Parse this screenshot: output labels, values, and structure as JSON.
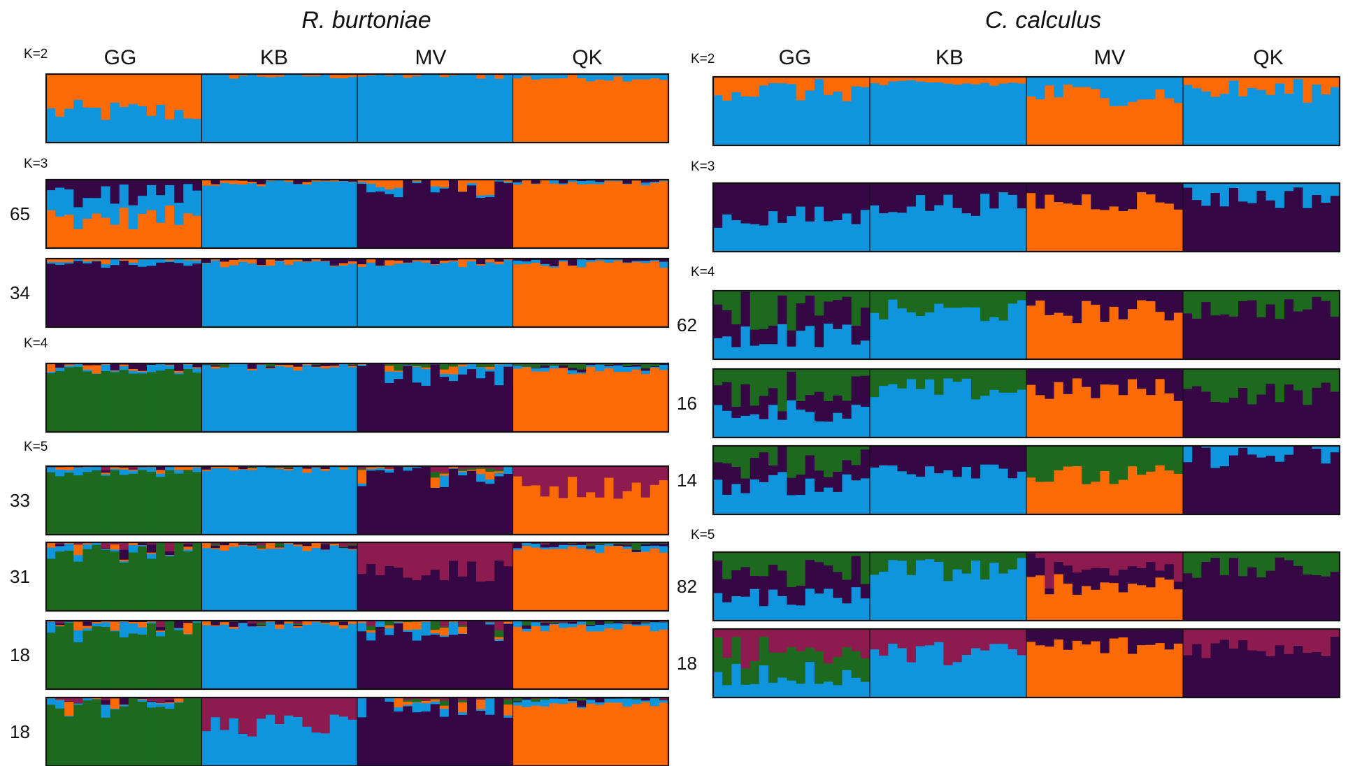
{
  "colors": {
    "blue": "#0e95dd",
    "orange": "#fb6a04",
    "purple": "#360745",
    "green": "#1d6a1e",
    "maroon": "#8e1b4f"
  },
  "chart_data": {
    "type": "bar",
    "description_kind": "STRUCTURE admixture plots (ancestry proportions per individual, stacked bars)",
    "panels": [
      {
        "title": "R. burtoniae",
        "populations": [
          "GG",
          "KB",
          "MV",
          "QK"
        ],
        "individuals_per_population": 17,
        "rows": [
          {
            "k_label": "K=2",
            "run_label": "",
            "K": 2,
            "dominant": {
              "GG": [
                "blue",
                0.45,
                "orange"
              ],
              "KB": [
                "blue",
                0.98
              ],
              "MV": [
                "blue",
                0.98
              ],
              "QK": [
                "orange",
                0.95
              ]
            }
          },
          {
            "k_label": "K=3",
            "run_label": "65",
            "K": 3,
            "dominant": {
              "GG": [
                "orange",
                0.45,
                "blue",
                0.3,
                "purple"
              ],
              "KB": [
                "blue",
                0.96
              ],
              "MV": [
                "purple",
                0.88
              ],
              "QK": [
                "orange",
                0.96
              ]
            }
          },
          {
            "k_label": "",
            "run_label": "34",
            "K": 3,
            "dominant": {
              "GG": [
                "purple",
                0.92
              ],
              "KB": [
                "blue",
                0.93
              ],
              "MV": [
                "blue",
                0.93
              ],
              "QK": [
                "orange",
                0.92
              ]
            }
          },
          {
            "k_label": "K=4",
            "run_label": "",
            "K": 4,
            "dominant": {
              "GG": [
                "green",
                0.9
              ],
              "KB": [
                "blue",
                0.95
              ],
              "MV": [
                "purple",
                0.85
              ],
              "QK": [
                "orange",
                0.9
              ]
            }
          },
          {
            "k_label": "K=5",
            "run_label": "33",
            "K": 5,
            "dominant": {
              "GG": [
                "green",
                0.9
              ],
              "KB": [
                "blue",
                0.95
              ],
              "MV": [
                "purple",
                0.86
              ],
              "QK": [
                "orange",
                0.7,
                "maroon"
              ]
            }
          },
          {
            "k_label": "",
            "run_label": "31",
            "K": 5,
            "dominant": {
              "GG": [
                "green",
                0.88
              ],
              "KB": [
                "blue",
                0.93
              ],
              "MV": [
                "purple",
                0.6,
                "maroon"
              ],
              "QK": [
                "orange",
                0.9
              ]
            }
          },
          {
            "k_label": "",
            "run_label": "18",
            "K": 5,
            "dominant": {
              "GG": [
                "green",
                0.86
              ],
              "KB": [
                "blue",
                0.93
              ],
              "MV": [
                "purple",
                0.86
              ],
              "QK": [
                "orange",
                0.9
              ]
            }
          },
          {
            "k_label": "",
            "run_label": "18",
            "K": 5,
            "dominant": {
              "GG": [
                "green",
                0.88
              ],
              "KB": [
                "blue",
                0.6,
                "maroon"
              ],
              "MV": [
                "purple",
                0.86
              ],
              "QK": [
                "orange",
                0.9
              ]
            }
          }
        ]
      },
      {
        "title": "C. calculus",
        "populations": [
          "GG",
          "KB",
          "MV",
          "QK"
        ],
        "individuals_per_population": 17,
        "rows": [
          {
            "k_label": "K=2",
            "run_label": "",
            "K": 2,
            "dominant": {
              "GG": [
                "blue",
                0.8,
                "orange"
              ],
              "KB": [
                "blue",
                0.9,
                "orange"
              ],
              "MV": [
                "orange",
                0.75,
                "blue"
              ],
              "QK": [
                "blue",
                0.8,
                "orange"
              ]
            }
          },
          {
            "k_label": "K=3",
            "run_label": "",
            "K": 3,
            "dominant": {
              "GG": [
                "blue",
                0.5,
                "purple"
              ],
              "KB": [
                "blue",
                0.7,
                "purple"
              ],
              "MV": [
                "orange",
                0.75,
                "purple"
              ],
              "QK": [
                "purple",
                0.8,
                "blue"
              ]
            }
          },
          {
            "k_label": "K=4",
            "run_label": "62",
            "K": 4,
            "dominant": {
              "GG": [
                "blue",
                0.35,
                "purple",
                0.35,
                "green"
              ],
              "KB": [
                "blue",
                0.7,
                "green"
              ],
              "MV": [
                "orange",
                0.7,
                "purple"
              ],
              "QK": [
                "purple",
                0.75,
                "green"
              ]
            }
          },
          {
            "k_label": "",
            "run_label": "16",
            "K": 4,
            "dominant": {
              "GG": [
                "blue",
                0.4,
                "purple",
                0.3,
                "green"
              ],
              "KB": [
                "blue",
                0.7,
                "green"
              ],
              "MV": [
                "orange",
                0.7,
                "purple"
              ],
              "QK": [
                "purple",
                0.65,
                "green"
              ]
            }
          },
          {
            "k_label": "",
            "run_label": "14",
            "K": 4,
            "dominant": {
              "GG": [
                "blue",
                0.45,
                "purple",
                0.3,
                "green"
              ],
              "KB": [
                "blue",
                0.7,
                "purple"
              ],
              "MV": [
                "orange",
                0.55,
                "green"
              ],
              "QK": [
                "purple",
                0.85,
                "blue"
              ]
            }
          },
          {
            "k_label": "K=5",
            "run_label": "82",
            "K": 5,
            "dominant": {
              "GG": [
                "blue",
                0.35,
                "purple",
                0.35,
                "green"
              ],
              "KB": [
                "blue",
                0.75,
                "green"
              ],
              "MV": [
                "orange",
                0.55,
                "purple",
                0.25,
                "maroon"
              ],
              "QK": [
                "purple",
                0.75,
                "green"
              ]
            }
          },
          {
            "k_label": "",
            "run_label": "18",
            "K": 5,
            "dominant": {
              "GG": [
                "blue",
                0.35,
                "green",
                0.35,
                "maroon"
              ],
              "KB": [
                "blue",
                0.65,
                "maroon"
              ],
              "MV": [
                "orange",
                0.75,
                "purple"
              ],
              "QK": [
                "purple",
                0.75,
                "maroon"
              ]
            }
          }
        ]
      }
    ]
  }
}
